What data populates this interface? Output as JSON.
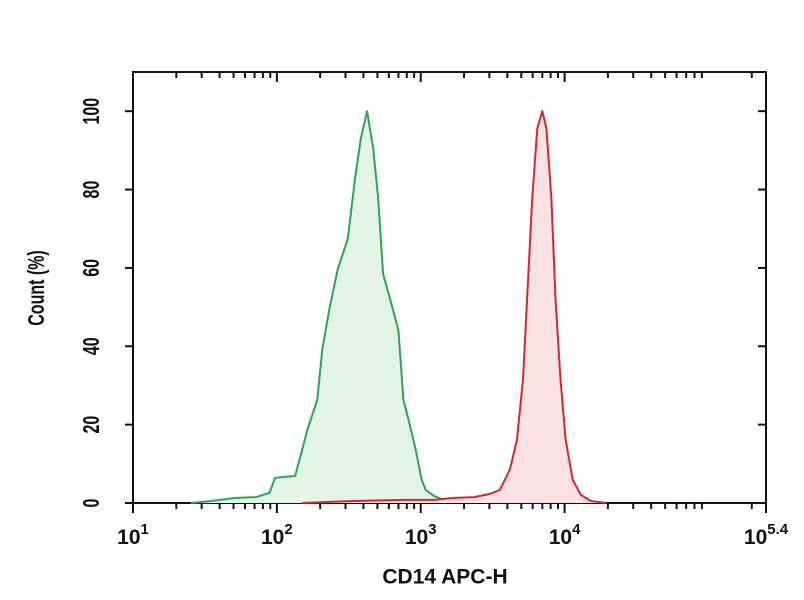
{
  "chart_data": {
    "type": "histogram-line",
    "xlabel": "CD14 APC-H",
    "ylabel": "Count (%)",
    "xscale": "log",
    "xlim": [
      10,
      251189
    ],
    "xticks": [
      {
        "value": 10,
        "base": "10",
        "exp": "1"
      },
      {
        "value": 100,
        "base": "10",
        "exp": "2"
      },
      {
        "value": 1000,
        "base": "10",
        "exp": "3"
      },
      {
        "value": 10000,
        "base": "10",
        "exp": "4"
      },
      {
        "value": 251189,
        "base": "10",
        "exp": "5.4"
      }
    ],
    "xminorticks": [
      20,
      30,
      40,
      50,
      60,
      70,
      80,
      90,
      200,
      300,
      400,
      500,
      600,
      700,
      800,
      900,
      2000,
      3000,
      4000,
      5000,
      6000,
      7000,
      8000,
      9000,
      20000,
      30000,
      40000,
      50000,
      60000,
      70000,
      80000,
      90000,
      200000
    ],
    "ylim": [
      0,
      110
    ],
    "yticks": [
      0,
      20,
      40,
      60,
      80,
      100
    ],
    "series": [
      {
        "color": "#2aa55a",
        "fill": "#e6f4e6",
        "x": [
          25.2,
          34.8,
          52,
          72,
          89,
          97,
          114,
          134,
          150,
          163,
          191,
          207,
          232,
          265,
          311,
          349,
          384,
          424,
          467,
          506,
          548,
          615,
          700,
          759,
          823,
          922,
          1016,
          1084,
          1236,
          1453,
          2009
        ],
        "values": [
          0,
          0.5,
          1.3,
          1.5,
          2.6,
          6.4,
          6.7,
          6.9,
          13.6,
          18.7,
          26.4,
          39.2,
          49.5,
          59.7,
          67.4,
          82.8,
          93.1,
          100,
          90.5,
          77.7,
          58.5,
          51.8,
          44.1,
          26.2,
          21.2,
          13.6,
          5.9,
          3.3,
          1.8,
          0.8,
          0.3
        ]
      },
      {
        "color": "#d9262e",
        "fill": "#fbe3e4",
        "x": [
          150,
          337,
          759,
          1236,
          1706,
          2362,
          3013,
          3540,
          4168,
          4667,
          5142,
          5486,
          5951,
          6457,
          7000,
          7469,
          8100,
          8645,
          9370,
          10170,
          11380,
          12970,
          15240,
          19450
        ],
        "values": [
          0,
          0.5,
          0.8,
          0.8,
          1.3,
          1.5,
          2.3,
          3.3,
          8.5,
          16.2,
          31.6,
          52.1,
          77.7,
          95.6,
          100,
          95.6,
          77.7,
          52.1,
          31.6,
          16.2,
          5.9,
          2.1,
          0.5,
          0
        ]
      }
    ]
  }
}
